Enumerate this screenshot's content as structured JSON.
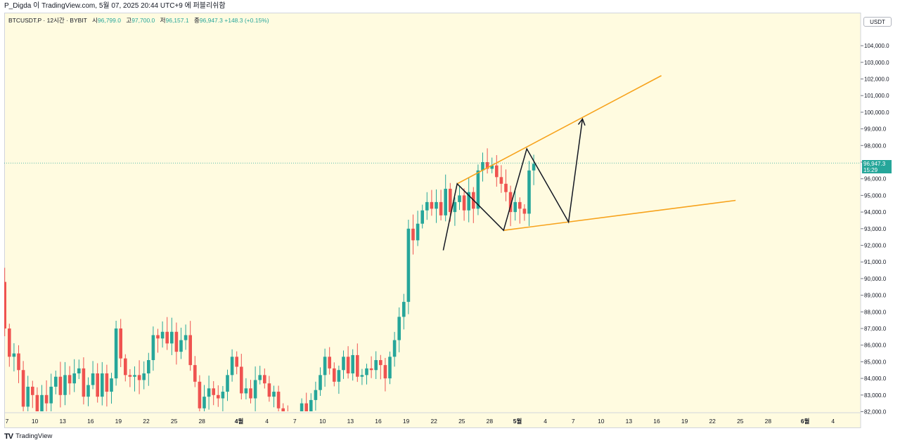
{
  "header": {
    "caption": "P_Digda 이 TradingView.com, 5월 07, 2025 20:44 UTC+9 에 퍼블리쉬함"
  },
  "legend": {
    "symbol": "BTCUSDT.P · 12시간 · BYBIT",
    "open_label": "시",
    "open": "96,799.0",
    "high_label": "고",
    "high": "97,700.0",
    "low_label": "저",
    "low": "96,157.1",
    "close_label": "종",
    "close": "96,947.3",
    "change": "+148.3 (+0.15%)"
  },
  "axis_unit": "USDT",
  "last_price": {
    "value": "96,947.3",
    "countdown": "15:29"
  },
  "footer": {
    "brand": "TradingView",
    "logo": "tradingview-logo-icon"
  },
  "colors": {
    "up": "#26a69a",
    "down": "#ef5350",
    "channel": "#f7a21b",
    "pattern": "#131722",
    "background": "#fffbe0"
  },
  "chart_data": {
    "type": "candlestick",
    "y_axis": {
      "min": 82000,
      "max": 105000,
      "step": 1000,
      "position": "right",
      "tick_labels": [
        "82,000.0",
        "83,000.0",
        "84,000.0",
        "85,000.0",
        "86,000.0",
        "87,000.0",
        "88,000.0",
        "89,000.0",
        "90,000.0",
        "91,000.0",
        "92,000.0",
        "93,000.0",
        "94,000.0",
        "95,000.0",
        "96,000.0",
        "97,000.0",
        "98,000.0",
        "99,000.0",
        "100,000.0",
        "101,000.0",
        "102,000.0",
        "103,000.0",
        "104,000.0"
      ]
    },
    "x_axis": {
      "interval": "12h",
      "first_bar_date": "2025-03-06",
      "last_bar_date": "2025-05-07",
      "tick_labels": [
        {
          "label": "7",
          "date": "2025-03-07"
        },
        {
          "label": "10",
          "date": "2025-03-10"
        },
        {
          "label": "13",
          "date": "2025-03-13"
        },
        {
          "label": "16",
          "date": "2025-03-16"
        },
        {
          "label": "19",
          "date": "2025-03-19"
        },
        {
          "label": "22",
          "date": "2025-03-22"
        },
        {
          "label": "25",
          "date": "2025-03-25"
        },
        {
          "label": "28",
          "date": "2025-03-28"
        },
        {
          "label": "4월",
          "date": "2025-04-01"
        },
        {
          "label": "4",
          "date": "2025-04-04"
        },
        {
          "label": "7",
          "date": "2025-04-07"
        },
        {
          "label": "10",
          "date": "2025-04-10"
        },
        {
          "label": "13",
          "date": "2025-04-13"
        },
        {
          "label": "16",
          "date": "2025-04-16"
        },
        {
          "label": "19",
          "date": "2025-04-19"
        },
        {
          "label": "22",
          "date": "2025-04-22"
        },
        {
          "label": "25",
          "date": "2025-04-25"
        },
        {
          "label": "28",
          "date": "2025-04-28"
        },
        {
          "label": "5월",
          "date": "2025-05-01"
        },
        {
          "label": "4",
          "date": "2025-05-04"
        },
        {
          "label": "7",
          "date": "2025-05-07"
        },
        {
          "label": "10",
          "date": "2025-05-10"
        },
        {
          "label": "13",
          "date": "2025-05-13"
        },
        {
          "label": "16",
          "date": "2025-05-16"
        },
        {
          "label": "19",
          "date": "2025-05-19"
        },
        {
          "label": "22",
          "date": "2025-05-22"
        },
        {
          "label": "25",
          "date": "2025-05-25"
        },
        {
          "label": "28",
          "date": "2025-05-28"
        },
        {
          "label": "6월",
          "date": "2025-06-01"
        },
        {
          "label": "4",
          "date": "2025-06-04"
        }
      ]
    },
    "closes": [
      89800,
      87000,
      85300,
      85500,
      84500,
      82300,
      83500,
      83000,
      82000,
      83000,
      82500,
      83500,
      84100,
      83000,
      84200,
      83700,
      84300,
      84600,
      82900,
      83600,
      84300,
      82900,
      84300,
      83200,
      84000,
      87000,
      85200,
      84200,
      84100,
      84200,
      83900,
      84300,
      85100,
      86600,
      86400,
      86800,
      86100,
      86800,
      85600,
      86300,
      86600,
      84800,
      83800,
      82200,
      82900,
      83400,
      83000,
      82800,
      83200,
      84200,
      85300,
      84700,
      83100,
      83400,
      82800,
      83900,
      84200,
      83700,
      82900,
      83200,
      82200,
      81600,
      81000,
      80800,
      80600,
      82500,
      81500,
      82700,
      83300,
      84200,
      85300,
      84600,
      83800,
      84500,
      85300,
      84300,
      85400,
      84100,
      84200,
      84600,
      84500,
      85100,
      84800,
      84000,
      85300,
      86300,
      87700,
      88600,
      93000,
      92300,
      93300,
      94100,
      94600,
      94200,
      94600,
      93800,
      95400,
      94000,
      94600,
      95000,
      94100,
      95200,
      94200,
      96500,
      97000,
      96600,
      96800,
      96100,
      95700,
      95200,
      94000,
      94600,
      94200,
      93900,
      96500,
      96900
    ],
    "pattern_lines": {
      "upper_channel": {
        "from": {
          "date": "2025-04-24T12:00",
          "price": 95700
        },
        "to": {
          "date": "2025-05-16T12:00",
          "price": 102200
        }
      },
      "lower_channel": {
        "from": {
          "date": "2025-04-29T12:00",
          "price": 92900
        },
        "to": {
          "date": "2025-05-24T12:00",
          "price": 94700
        }
      },
      "zigzag": [
        {
          "date": "2025-04-23T00:00",
          "price": 91700
        },
        {
          "date": "2025-04-24T12:00",
          "price": 95700
        },
        {
          "date": "2025-04-29T12:00",
          "price": 92900
        },
        {
          "date": "2025-05-02T00:00",
          "price": 97800
        },
        {
          "date": "2025-05-06T12:00",
          "price": 93400
        },
        {
          "date": "2025-05-08T00:00",
          "price": 99600
        }
      ]
    }
  }
}
